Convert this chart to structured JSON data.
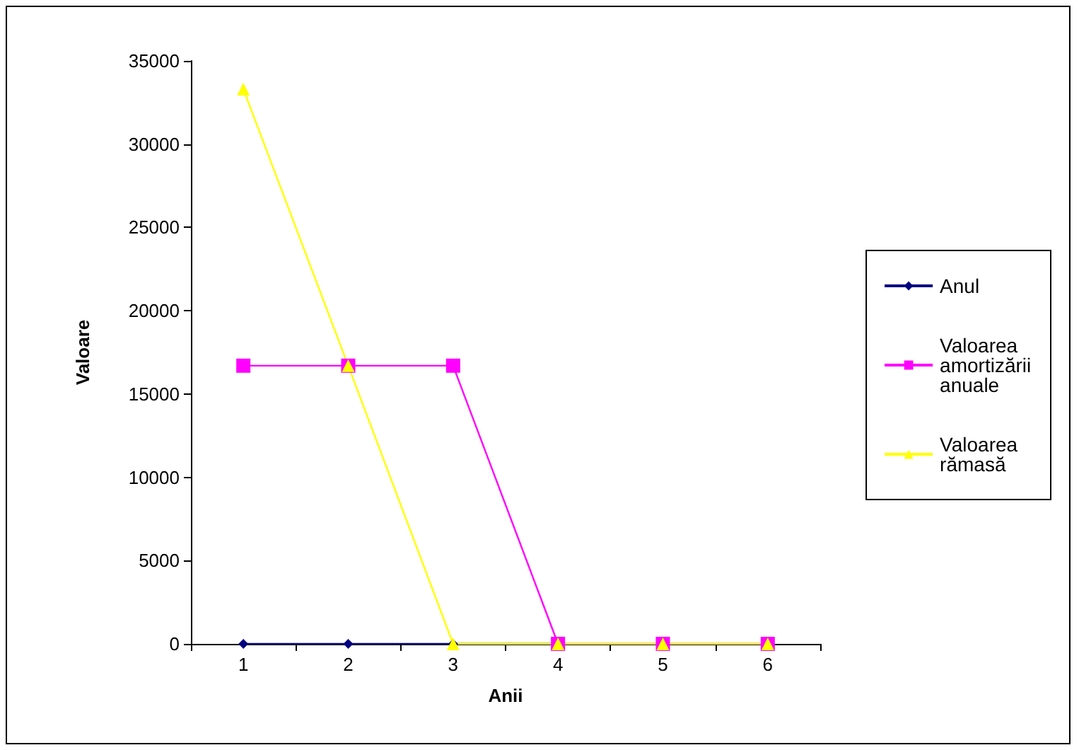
{
  "chart_data": {
    "type": "line",
    "xlabel": "Anii",
    "ylabel": "Valoare",
    "categories": [
      "1",
      "2",
      "3",
      "4",
      "5",
      "6"
    ],
    "series": [
      {
        "name": "Anul",
        "color": "#000080",
        "marker": "diamond",
        "values": [
          0,
          0,
          0,
          0,
          null,
          null
        ]
      },
      {
        "name": "Valoarea amortizării anuale",
        "color": "#ff00ff",
        "marker": "square",
        "values": [
          16700,
          16700,
          16700,
          0,
          0,
          0
        ]
      },
      {
        "name": "Valoarea rămasă",
        "color": "#ffff00",
        "marker": "triangle",
        "values": [
          33300,
          16700,
          0,
          0,
          0,
          0
        ]
      }
    ],
    "ylim": [
      0,
      35000
    ],
    "yticks": [
      0,
      5000,
      10000,
      15000,
      20000,
      25000,
      30000,
      35000
    ],
    "grid": false,
    "legend": "right",
    "line_style": "solid"
  }
}
